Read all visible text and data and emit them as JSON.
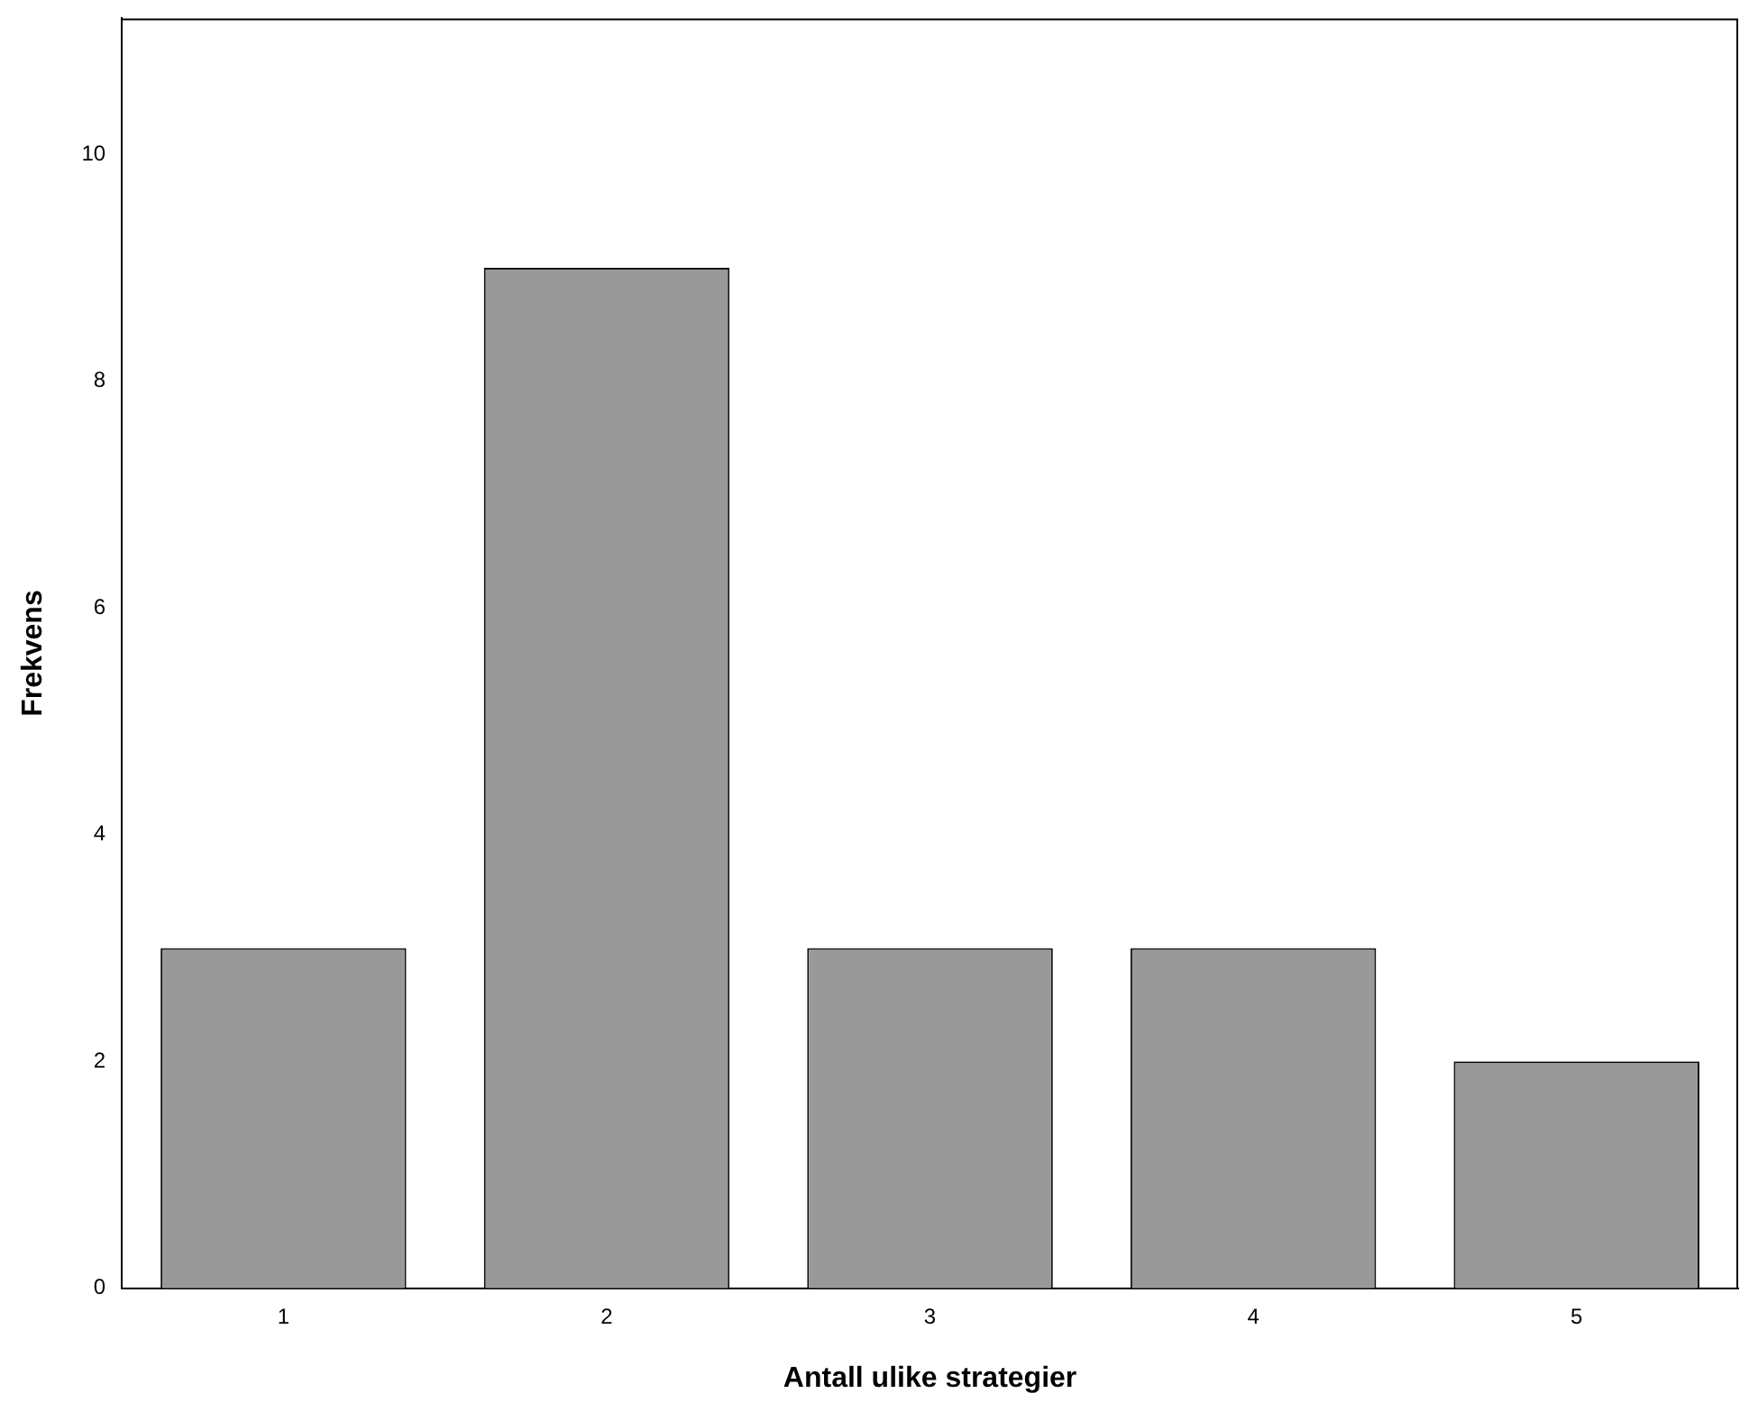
{
  "chart_data": {
    "type": "bar",
    "xlabel": "Antall ulike strategier",
    "ylabel": "Frekvens",
    "categories": [
      "1",
      "2",
      "3",
      "4",
      "5"
    ],
    "values": [
      3,
      9,
      3,
      3,
      2
    ],
    "color": "#999999",
    "ylim": [
      0,
      11.2
    ],
    "yticks": [
      0,
      2,
      4,
      6,
      8,
      10
    ],
    "grid": false,
    "legend": false
  }
}
